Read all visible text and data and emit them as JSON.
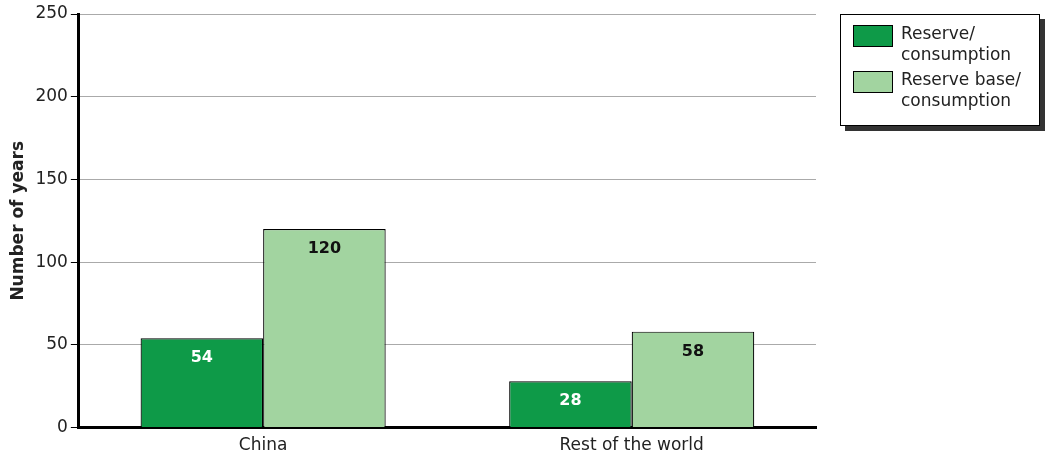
{
  "chart_data": {
    "type": "bar",
    "ylabel": "Number of years",
    "categories": [
      "China",
      "Rest of the world"
    ],
    "series": [
      {
        "name": "Reserve/ consumption",
        "color": "#0e9a48",
        "values": [
          54,
          28
        ]
      },
      {
        "name": "Reserve base/ consumption",
        "color": "#a2d4a0",
        "values": [
          120,
          58
        ]
      }
    ],
    "ylim": [
      0,
      250
    ],
    "yticks": [
      0,
      50,
      100,
      150,
      200,
      250
    ],
    "grid": "y",
    "legend": "top right",
    "data_labels": true
  }
}
